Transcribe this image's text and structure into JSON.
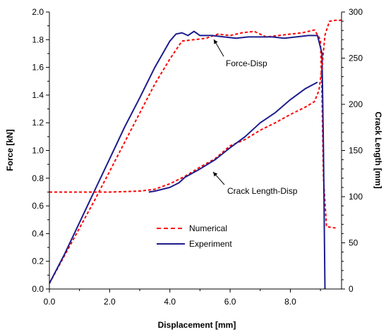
{
  "chart_data": {
    "type": "line",
    "xlabel": "Displacement [mm]",
    "ylabel": "Force [kN]",
    "y2label": "Crack Length [mm]",
    "xlim": [
      0,
      9.7
    ],
    "ylim": [
      0,
      2.0
    ],
    "y2lim": [
      0,
      300
    ],
    "x_ticks": [
      "0.0",
      "2.0",
      "4.0",
      "6.0",
      "8.0"
    ],
    "y_ticks": [
      "0.0",
      "0.2",
      "0.4",
      "0.6",
      "0.8",
      "1.0",
      "1.2",
      "1.4",
      "1.6",
      "1.8",
      "2.0"
    ],
    "y2_ticks": [
      "0",
      "50",
      "100",
      "150",
      "200",
      "250",
      "300"
    ],
    "grid": false,
    "legend_position": "lower-center",
    "legend": [
      {
        "label": "Numerical",
        "style": "dashed",
        "color": "#ff0000"
      },
      {
        "label": "Experiment",
        "style": "solid",
        "color": "#1c1c8c"
      }
    ],
    "annotations": [
      {
        "text": "Force-Disp",
        "points_to": [
          5.3,
          1.82
        ]
      },
      {
        "text": "Crack Length-Disp",
        "points_to": [
          5.2,
          0.88
        ]
      }
    ],
    "series": [
      {
        "name": "Numerical",
        "curve": "Force-Disp",
        "axis": "left",
        "style": "dashed",
        "color": "#ff0000",
        "x": [
          0.0,
          0.5,
          1.0,
          1.5,
          2.0,
          2.5,
          3.0,
          3.5,
          4.0,
          4.4,
          4.8,
          5.2,
          5.6,
          6.0,
          6.4,
          6.8,
          7.2,
          7.6,
          8.0,
          8.4,
          8.8,
          9.0,
          9.05,
          9.1,
          9.2,
          9.5
        ],
        "y": [
          0.04,
          0.24,
          0.44,
          0.64,
          0.85,
          1.06,
          1.27,
          1.48,
          1.66,
          1.79,
          1.8,
          1.81,
          1.84,
          1.83,
          1.85,
          1.86,
          1.82,
          1.83,
          1.84,
          1.85,
          1.87,
          1.8,
          1.4,
          0.8,
          0.45,
          0.44
        ]
      },
      {
        "name": "Experiment",
        "curve": "Force-Disp",
        "axis": "left",
        "style": "solid",
        "color": "#1c1c8c",
        "x": [
          0.0,
          0.5,
          1.0,
          1.5,
          2.0,
          2.5,
          3.0,
          3.5,
          4.0,
          4.2,
          4.4,
          4.6,
          4.8,
          5.0,
          5.4,
          5.8,
          6.2,
          6.6,
          7.0,
          7.4,
          7.8,
          8.2,
          8.6,
          8.9,
          9.05,
          9.1,
          9.15
        ],
        "y": [
          0.04,
          0.25,
          0.48,
          0.71,
          0.94,
          1.17,
          1.38,
          1.6,
          1.79,
          1.84,
          1.85,
          1.83,
          1.86,
          1.83,
          1.83,
          1.82,
          1.81,
          1.82,
          1.82,
          1.82,
          1.81,
          1.82,
          1.83,
          1.83,
          1.7,
          1.0,
          0.0
        ]
      },
      {
        "name": "Numerical",
        "curve": "Crack Length-Disp",
        "axis": "right",
        "style": "dashed",
        "color": "#ff0000",
        "x": [
          0.0,
          1.0,
          2.0,
          3.0,
          3.5,
          4.0,
          4.5,
          5.0,
          5.5,
          6.0,
          6.5,
          7.0,
          7.5,
          8.0,
          8.5,
          8.8,
          8.95,
          9.05,
          9.15,
          9.3,
          9.5,
          9.7
        ],
        "y": [
          105,
          105,
          105,
          106,
          108,
          114,
          122,
          132,
          141,
          155,
          162,
          172,
          180,
          189,
          197,
          203,
          215,
          240,
          275,
          290,
          291,
          291
        ]
      },
      {
        "name": "Experiment",
        "curve": "Crack Length-Disp",
        "axis": "right",
        "style": "solid",
        "color": "#1c1c8c",
        "x": [
          3.3,
          3.5,
          4.0,
          4.3,
          4.5,
          5.0,
          5.5,
          6.0,
          6.5,
          7.0,
          7.5,
          8.0,
          8.5,
          8.9
        ],
        "y": [
          105,
          106,
          110,
          115,
          121,
          130,
          140,
          153,
          165,
          180,
          191,
          205,
          217,
          224
        ]
      }
    ]
  }
}
